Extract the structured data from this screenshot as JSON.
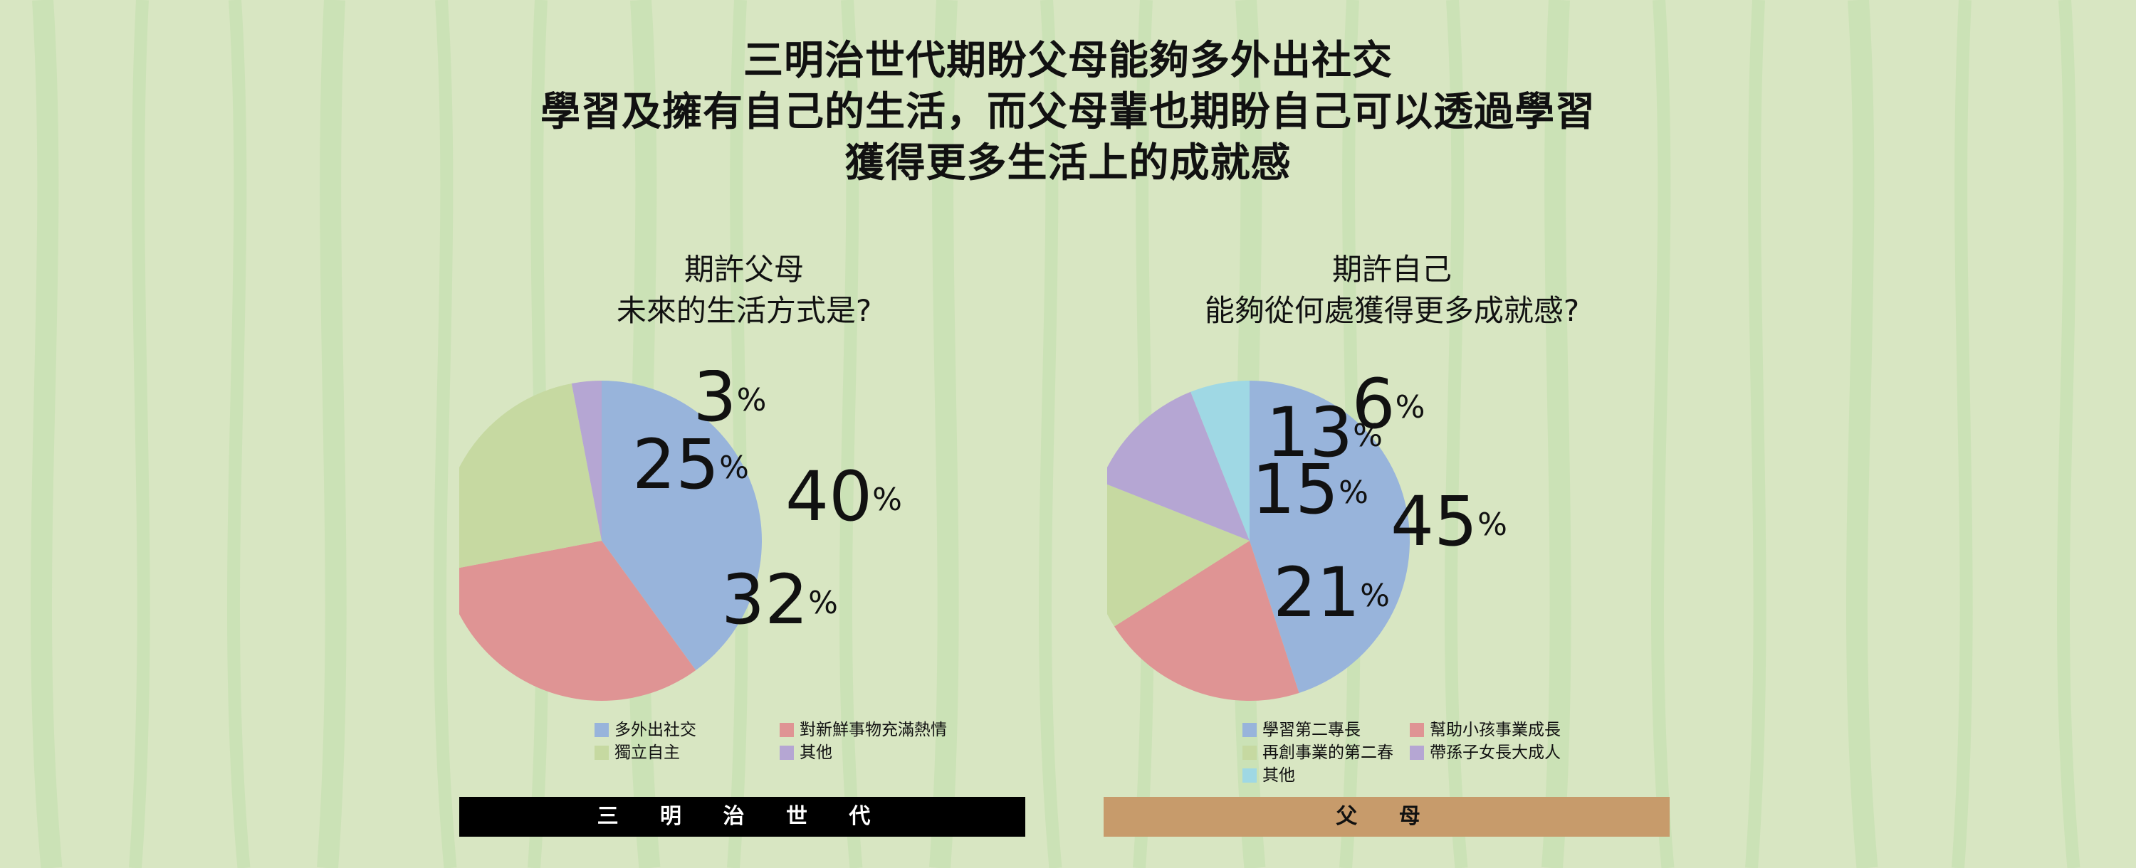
{
  "title": {
    "line1": "三明治世代期盼父母能夠多外出社交",
    "line2": "學習及擁有自己的生活，而父母輩也期盼自己可以透過學習",
    "line3": "獲得更多生活上的成就感"
  },
  "colors": {
    "background": "#d8e6c2",
    "stripe": "#c6e0b1",
    "blue": "#98b4db",
    "red": "#df9494",
    "green": "#c6d9a1",
    "purple": "#b5a6d3",
    "cyan": "#9fd8e4",
    "left_bar": "#000000",
    "right_bar": "#c79b6b"
  },
  "chart_data": [
    {
      "type": "pie",
      "title": [
        "期許父母",
        "未來的生活方式是?"
      ],
      "categories": [
        "多外出社交",
        "對新鮮事物充滿熱情",
        "獨立自主",
        "其他"
      ],
      "values": [
        40,
        32,
        25,
        3
      ],
      "colors": [
        "#98b4db",
        "#df9494",
        "#c6d9a1",
        "#b5a6d3"
      ],
      "unit": "%",
      "legend": "bottom",
      "group_label": "三 明 治 世 代"
    },
    {
      "type": "pie",
      "title": [
        "期許自己",
        "能夠從何處獲得更多成就感?"
      ],
      "categories": [
        "學習第二專長",
        "幫助小孩事業成長",
        "再創事業的第二春",
        "帶孫子女長大成人",
        "其他"
      ],
      "values": [
        45,
        21,
        15,
        13,
        6
      ],
      "colors": [
        "#98b4db",
        "#df9494",
        "#c6d9a1",
        "#b5a6d3",
        "#9fd8e4"
      ],
      "unit": "%",
      "legend": "bottom",
      "group_label": "父 母"
    }
  ]
}
